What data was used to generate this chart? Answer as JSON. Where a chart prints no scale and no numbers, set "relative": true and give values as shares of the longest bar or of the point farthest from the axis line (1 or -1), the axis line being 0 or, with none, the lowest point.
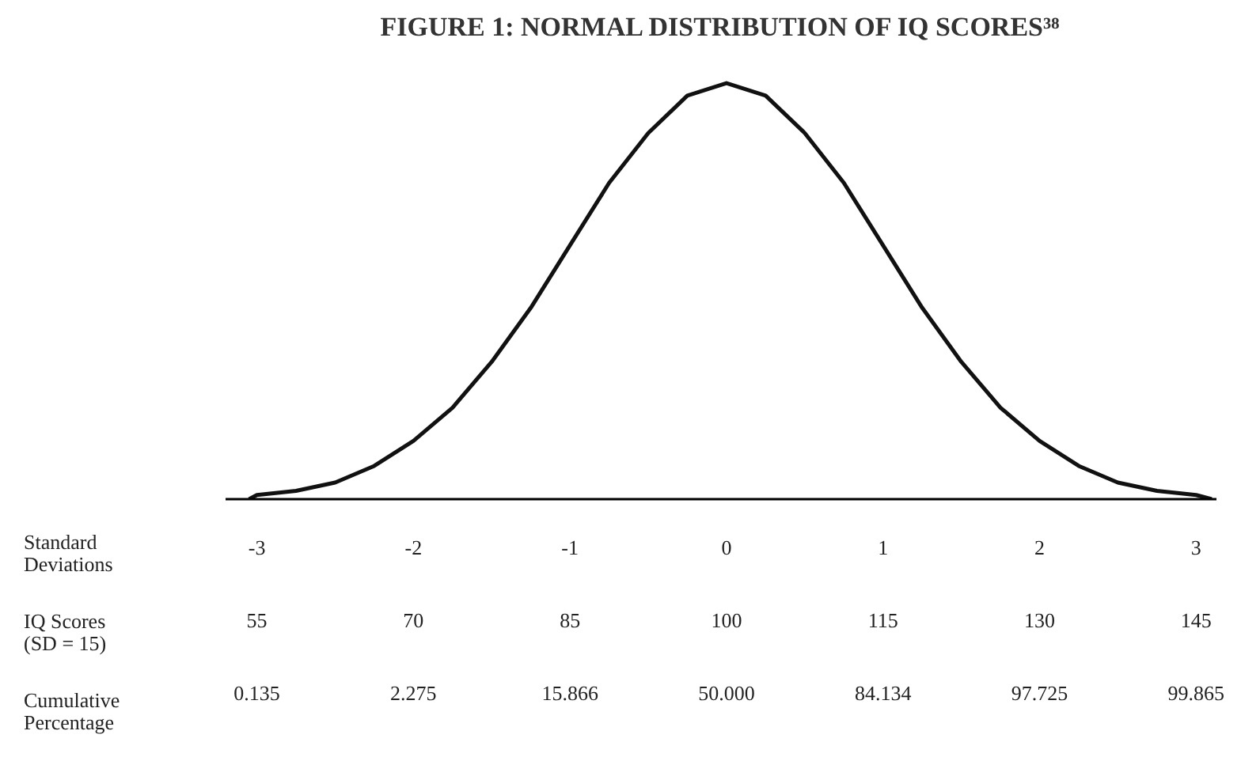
{
  "chart_data": {
    "type": "line",
    "relative": true,
    "title": "FIGURE 1: NORMAL DISTRIBUTION OF IQ SCORES³⁸",
    "x": [
      -3.05,
      -3,
      -2.75,
      -2.5,
      -2.25,
      -2,
      -1.75,
      -1.5,
      -1.25,
      -1,
      -0.75,
      -0.5,
      -0.25,
      0,
      0.25,
      0.5,
      0.75,
      1,
      1.25,
      1.5,
      1.75,
      2,
      2.25,
      2.5,
      2.75,
      3,
      3.1
    ],
    "series": [
      {
        "color": "#111111",
        "values": [
          0,
          0.01,
          0.02,
          0.04,
          0.08,
          0.14,
          0.22,
          0.33,
          0.46,
          0.61,
          0.76,
          0.88,
          0.97,
          1,
          0.97,
          0.88,
          0.76,
          0.61,
          0.46,
          0.33,
          0.22,
          0.14,
          0.08,
          0.04,
          0.02,
          0.01,
          0
        ]
      }
    ],
    "xlim": [
      -3.2,
      3.13
    ],
    "xticks": [
      -3,
      -2,
      -1,
      0,
      1,
      2,
      3
    ],
    "annotations": [
      "Standard\nDeviations",
      "IQ Scores\n(SD = 15)",
      "Cumulative\nPercentage",
      "55",
      "70",
      "85",
      "100",
      "115",
      "130",
      "145",
      "0.135",
      "2.275",
      "15.866",
      "50.000",
      "84.134",
      "97.725",
      "99.865"
    ],
    "grid": false,
    "marker": "none",
    "line_style": "solid"
  }
}
